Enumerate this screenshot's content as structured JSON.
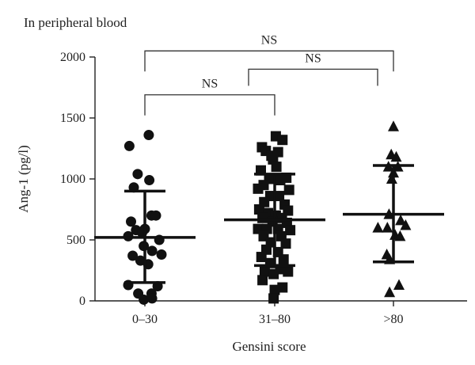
{
  "chart_data": {
    "type": "scatter",
    "title": "In peripheral blood",
    "xlabel": "Gensini score",
    "ylabel": "Ang-1 (pg/l)",
    "ylim": [
      0,
      2000
    ],
    "yticks": [
      "0",
      "500",
      "1000",
      "1500",
      "2000"
    ],
    "categories": [
      "0–30",
      "31–80",
      ">80"
    ],
    "grid": false,
    "series": [
      {
        "category": "0–30",
        "marker": "circle",
        "mean": 520,
        "sd_low": 150,
        "sd_high": 900,
        "values": [
          {
            "x": -0.28,
            "y": 1270
          },
          {
            "x": 0.07,
            "y": 1360
          },
          {
            "x": -0.13,
            "y": 1040
          },
          {
            "x": 0.08,
            "y": 990
          },
          {
            "x": -0.2,
            "y": 930
          },
          {
            "x": 0.12,
            "y": 700
          },
          {
            "x": 0.2,
            "y": 700
          },
          {
            "x": -0.25,
            "y": 650
          },
          {
            "x": -0.16,
            "y": 580
          },
          {
            "x": 0.0,
            "y": 590
          },
          {
            "x": -0.05,
            "y": 560
          },
          {
            "x": -0.3,
            "y": 530
          },
          {
            "x": 0.26,
            "y": 500
          },
          {
            "x": -0.02,
            "y": 450
          },
          {
            "x": 0.13,
            "y": 410
          },
          {
            "x": -0.22,
            "y": 370
          },
          {
            "x": 0.3,
            "y": 380
          },
          {
            "x": -0.08,
            "y": 330
          },
          {
            "x": 0.06,
            "y": 300
          },
          {
            "x": -0.3,
            "y": 130
          },
          {
            "x": 0.23,
            "y": 120
          },
          {
            "x": -0.12,
            "y": 60
          },
          {
            "x": 0.12,
            "y": 60
          },
          {
            "x": -0.02,
            "y": 10
          },
          {
            "x": 0.13,
            "y": 20
          }
        ]
      },
      {
        "category": "31–80",
        "marker": "square",
        "mean": 665,
        "sd_low": 290,
        "sd_high": 1040,
        "values": [
          {
            "x": -0.23,
            "y": 1260
          },
          {
            "x": 0.02,
            "y": 1350
          },
          {
            "x": 0.14,
            "y": 1320
          },
          {
            "x": -0.16,
            "y": 1230
          },
          {
            "x": -0.06,
            "y": 1190
          },
          {
            "x": 0.06,
            "y": 1220
          },
          {
            "x": -0.03,
            "y": 1160
          },
          {
            "x": 0.03,
            "y": 1100
          },
          {
            "x": -0.25,
            "y": 1070
          },
          {
            "x": 0.21,
            "y": 1010
          },
          {
            "x": -0.1,
            "y": 1000
          },
          {
            "x": 0.1,
            "y": 990
          },
          {
            "x": -0.2,
            "y": 950
          },
          {
            "x": -0.3,
            "y": 920
          },
          {
            "x": 0.26,
            "y": 910
          },
          {
            "x": -0.08,
            "y": 860
          },
          {
            "x": 0.08,
            "y": 860
          },
          {
            "x": -0.19,
            "y": 810
          },
          {
            "x": 0.18,
            "y": 790
          },
          {
            "x": -0.28,
            "y": 750
          },
          {
            "x": 0.24,
            "y": 740
          },
          {
            "x": -0.12,
            "y": 720
          },
          {
            "x": 0.02,
            "y": 700
          },
          {
            "x": -0.22,
            "y": 680
          },
          {
            "x": 0.13,
            "y": 680
          },
          {
            "x": -0.04,
            "y": 650
          },
          {
            "x": 0.22,
            "y": 640
          },
          {
            "x": -0.3,
            "y": 590
          },
          {
            "x": -0.14,
            "y": 590
          },
          {
            "x": 0.06,
            "y": 590
          },
          {
            "x": 0.28,
            "y": 580
          },
          {
            "x": -0.2,
            "y": 530
          },
          {
            "x": 0.12,
            "y": 530
          },
          {
            "x": -0.07,
            "y": 480
          },
          {
            "x": 0.2,
            "y": 470
          },
          {
            "x": -0.15,
            "y": 420
          },
          {
            "x": 0.06,
            "y": 400
          },
          {
            "x": -0.24,
            "y": 360
          },
          {
            "x": 0.16,
            "y": 340
          },
          {
            "x": -0.08,
            "y": 310
          },
          {
            "x": 0.1,
            "y": 260
          },
          {
            "x": -0.18,
            "y": 240
          },
          {
            "x": 0.24,
            "y": 240
          },
          {
            "x": -0.02,
            "y": 220
          },
          {
            "x": -0.22,
            "y": 170
          },
          {
            "x": 0.14,
            "y": 110
          },
          {
            "x": 0.0,
            "y": 90
          },
          {
            "x": -0.02,
            "y": 20
          }
        ]
      },
      {
        "category": ">80",
        "marker": "triangle",
        "mean": 710,
        "sd_low": 320,
        "sd_high": 1110,
        "values": [
          {
            "x": 0.0,
            "y": 1430
          },
          {
            "x": -0.04,
            "y": 1200
          },
          {
            "x": 0.05,
            "y": 1180
          },
          {
            "x": -0.09,
            "y": 1100
          },
          {
            "x": 0.08,
            "y": 1100
          },
          {
            "x": 0.0,
            "y": 1050
          },
          {
            "x": -0.03,
            "y": 1000
          },
          {
            "x": -0.08,
            "y": 710
          },
          {
            "x": 0.13,
            "y": 660
          },
          {
            "x": -0.28,
            "y": 600
          },
          {
            "x": -0.11,
            "y": 600
          },
          {
            "x": 0.22,
            "y": 620
          },
          {
            "x": 0.03,
            "y": 540
          },
          {
            "x": 0.12,
            "y": 530
          },
          {
            "x": -0.12,
            "y": 380
          },
          {
            "x": -0.07,
            "y": 340
          },
          {
            "x": 0.1,
            "y": 130
          },
          {
            "x": -0.07,
            "y": 70
          }
        ]
      }
    ],
    "annotations": [
      {
        "from": "0–30",
        "to": "31–80",
        "label": "NS",
        "height": 1690
      },
      {
        "from": "31–80",
        "to": ">80",
        "label": "NS",
        "height": 1900
      },
      {
        "from": "0–30",
        "to": ">80",
        "label": "NS",
        "height": 2050
      }
    ]
  }
}
